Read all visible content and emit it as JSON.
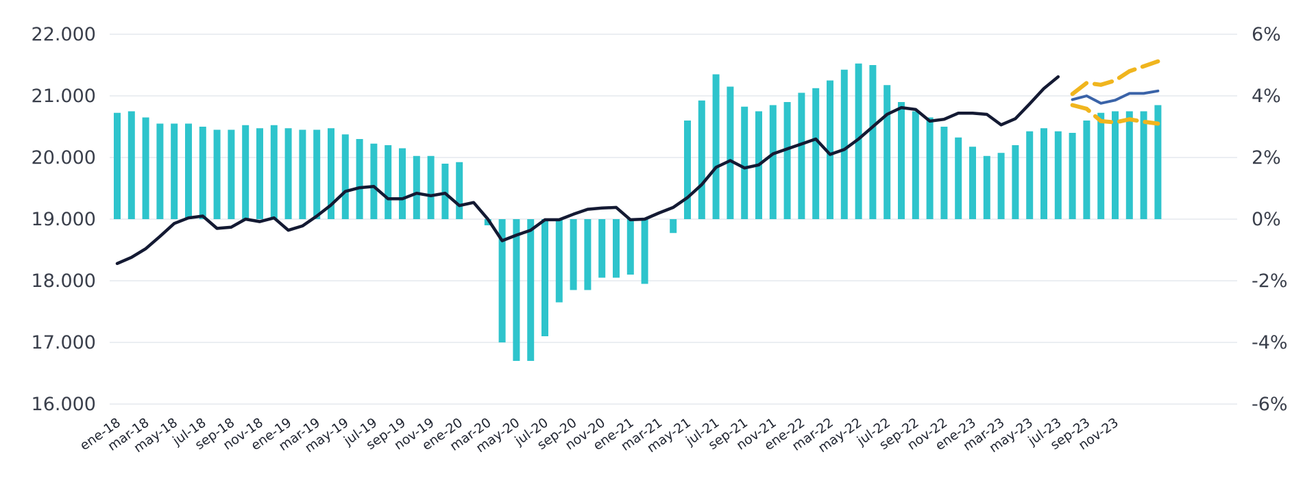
{
  "chart_data": {
    "type": "bar+line",
    "title": "",
    "xlabel": "",
    "ylabel": "",
    "grid": true,
    "legend": "none",
    "x_tick_labels": [
      "ene-18",
      "mar-18",
      "may-18",
      "jul-18",
      "sep-18",
      "nov-18",
      "ene-19",
      "mar-19",
      "may-19",
      "jul-19",
      "sep-19",
      "nov-19",
      "ene-20",
      "mar-20",
      "may-20",
      "jul-20",
      "sep-20",
      "nov-20",
      "ene-21",
      "mar-21",
      "may-21",
      "jul-21",
      "sep-21",
      "nov-21",
      "ene-22",
      "mar-22",
      "may-22",
      "jul-22",
      "sep-22",
      "nov-22",
      "ene-23",
      "mar-23",
      "may-23",
      "jul-23",
      "sep-23",
      "nov-23"
    ],
    "y_left": {
      "ticks": [
        "16.000",
        "17.000",
        "18.000",
        "19.000",
        "20.000",
        "21.000",
        "22.000"
      ],
      "range": [
        16000,
        22000
      ]
    },
    "y_right": {
      "ticks": [
        "-6%",
        "-4%",
        "-2%",
        "0%",
        "2%",
        "4%",
        "6%"
      ],
      "range": [
        -6,
        6
      ],
      "unit": "%"
    },
    "colors": {
      "bars": "#2ec4cc",
      "line": "#141a33",
      "forecast": "#3a63a8",
      "band": "#f0b51e"
    },
    "bars_pct": [
      3.45,
      3.5,
      3.3,
      3.1,
      3.1,
      3.1,
      3.0,
      2.9,
      2.9,
      3.05,
      2.95,
      3.05,
      2.95,
      2.9,
      2.9,
      2.95,
      2.75,
      2.6,
      2.45,
      2.4,
      2.3,
      2.05,
      2.05,
      1.8,
      1.85,
      0,
      -0.2,
      -4.0,
      -4.6,
      -4.6,
      -3.8,
      -2.7,
      -2.3,
      -2.3,
      -1.9,
      -1.9,
      -1.8,
      -2.1,
      0,
      -0.45,
      3.2,
      3.85,
      4.7,
      4.3,
      3.65,
      3.5,
      3.7,
      3.8,
      4.1,
      4.25,
      4.5,
      4.85,
      5.05,
      5.0,
      4.35,
      3.8,
      3.5,
      3.3,
      3.0,
      2.65,
      2.35,
      2.05,
      2.15,
      2.4,
      2.85,
      2.95,
      2.85,
      2.8,
      3.2,
      3.45,
      3.5,
      3.5,
      3.5,
      3.7
    ],
    "line_values": [
      18280,
      18380,
      18520,
      18720,
      18930,
      19020,
      19050,
      18850,
      18870,
      19000,
      18960,
      19020,
      18820,
      18890,
      19050,
      19230,
      19450,
      19510,
      19530,
      19330,
      19330,
      19420,
      19380,
      19420,
      19220,
      19270,
      19000,
      18650,
      18740,
      18820,
      18990,
      18990,
      19080,
      19160,
      19180,
      19190,
      18990,
      19000,
      19100,
      19190,
      19350,
      19560,
      19840,
      19950,
      19830,
      19880,
      20060,
      20140,
      20220,
      20300,
      20050,
      20130,
      20300,
      20500,
      20700,
      20810,
      20780,
      20590,
      20620,
      20720,
      20720,
      20700,
      20530,
      20630,
      20870,
      21120,
      21310
    ],
    "forecast_values": [
      20940,
      21000,
      20880,
      20930,
      21040,
      21040,
      21080
    ],
    "band_upper": [
      21030,
      21210,
      21180,
      21250,
      21400,
      21480,
      21560
    ],
    "band_lower": [
      20850,
      20790,
      20590,
      20570,
      20620,
      20580,
      20550
    ]
  }
}
